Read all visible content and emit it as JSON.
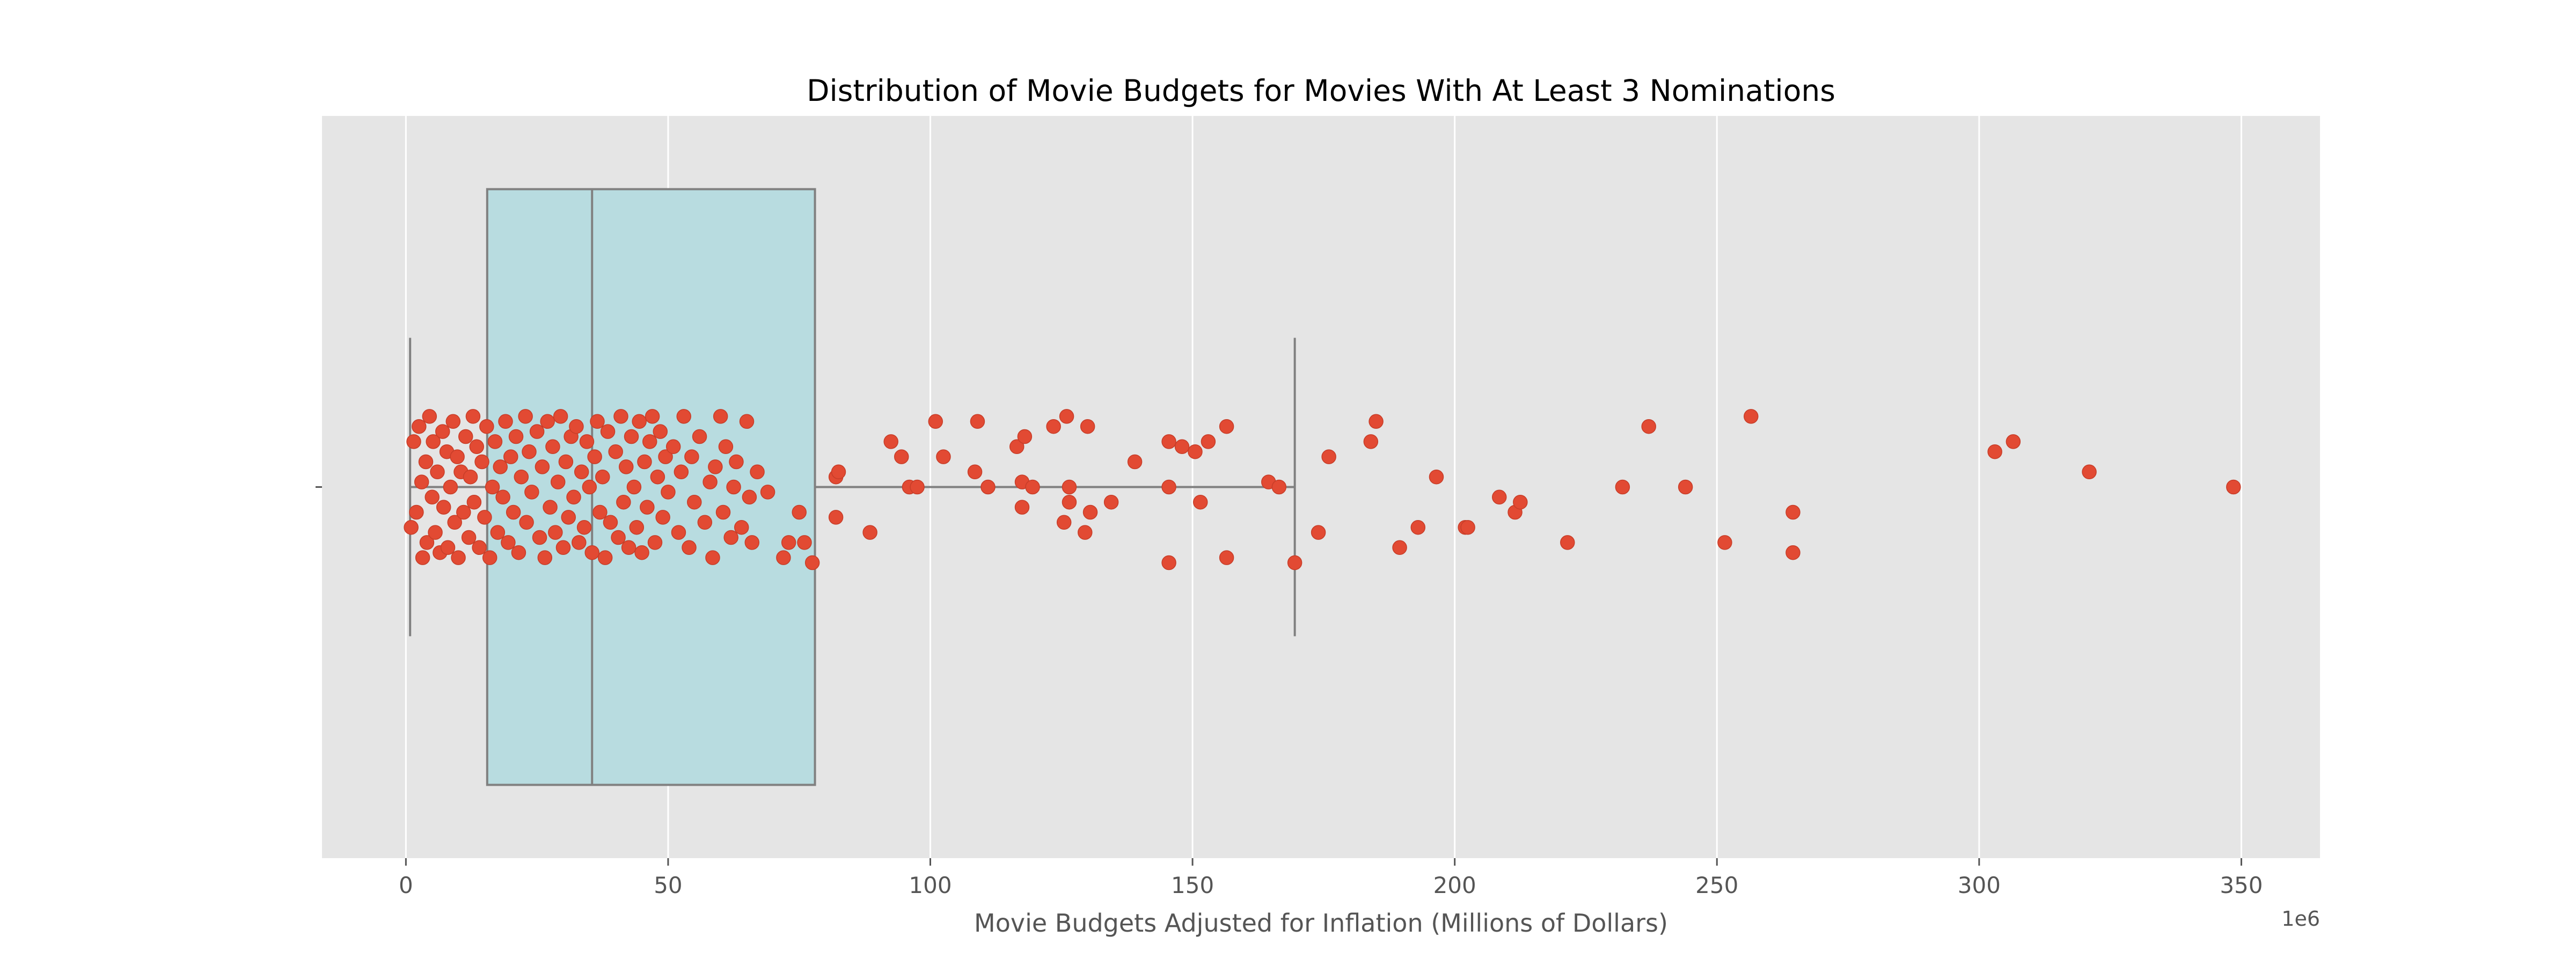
{
  "chart_data": {
    "type": "box",
    "title": "Distribution of Movie Budgets for Movies With At Least 3 Nominations",
    "xlabel": "Movie Budgets Adjusted for Inflation (Millions of Dollars)",
    "ylabel": "",
    "x_offset_label": "1e6",
    "xlim": [
      -16,
      365
    ],
    "xticks": [
      0,
      50,
      100,
      150,
      200,
      250,
      300,
      350
    ],
    "xtick_labels": [
      "0",
      "50",
      "100",
      "150",
      "200",
      "250",
      "300",
      "350"
    ],
    "grid": true,
    "legend": "none",
    "colors": {
      "plot_background": "#e5e5e5",
      "grid": "#ffffff",
      "box_fill": "#b8dce0",
      "box_edge": "#808080",
      "point": "#e24a33",
      "point_edge": "#c73d28"
    },
    "box": {
      "whisker_low": 0.8,
      "q1": 15.5,
      "median": 35.5,
      "q3": 78,
      "whisker_high": 169.5
    },
    "points": [
      {
        "x": 1.0,
        "j": -0.08
      },
      {
        "x": 1.5,
        "j": 0.09
      },
      {
        "x": 2.0,
        "j": -0.05
      },
      {
        "x": 2.5,
        "j": 0.12
      },
      {
        "x": 3.0,
        "j": 0.01
      },
      {
        "x": 3.2,
        "j": -0.14
      },
      {
        "x": 3.8,
        "j": 0.05
      },
      {
        "x": 4.0,
        "j": -0.11
      },
      {
        "x": 4.5,
        "j": 0.14
      },
      {
        "x": 5.0,
        "j": -0.02
      },
      {
        "x": 5.2,
        "j": 0.09
      },
      {
        "x": 5.6,
        "j": -0.09
      },
      {
        "x": 6.0,
        "j": 0.03
      },
      {
        "x": 6.5,
        "j": -0.13
      },
      {
        "x": 7.0,
        "j": 0.11
      },
      {
        "x": 7.2,
        "j": -0.04
      },
      {
        "x": 7.8,
        "j": 0.07
      },
      {
        "x": 8.0,
        "j": -0.12
      },
      {
        "x": 8.5,
        "j": 0.0
      },
      {
        "x": 9.0,
        "j": 0.13
      },
      {
        "x": 9.3,
        "j": -0.07
      },
      {
        "x": 9.8,
        "j": 0.06
      },
      {
        "x": 10.0,
        "j": -0.14
      },
      {
        "x": 10.5,
        "j": 0.03
      },
      {
        "x": 11.0,
        "j": -0.05
      },
      {
        "x": 11.4,
        "j": 0.1
      },
      {
        "x": 12.0,
        "j": -0.1
      },
      {
        "x": 12.3,
        "j": 0.02
      },
      {
        "x": 12.8,
        "j": 0.14
      },
      {
        "x": 13.0,
        "j": -0.03
      },
      {
        "x": 13.5,
        "j": 0.08
      },
      {
        "x": 14.0,
        "j": -0.12
      },
      {
        "x": 14.5,
        "j": 0.05
      },
      {
        "x": 15.0,
        "j": -0.06
      },
      {
        "x": 15.4,
        "j": 0.12
      },
      {
        "x": 16.0,
        "j": -0.14
      },
      {
        "x": 16.5,
        "j": 0.0
      },
      {
        "x": 17.0,
        "j": 0.09
      },
      {
        "x": 17.5,
        "j": -0.09
      },
      {
        "x": 18.0,
        "j": 0.04
      },
      {
        "x": 18.5,
        "j": -0.02
      },
      {
        "x": 19.0,
        "j": 0.13
      },
      {
        "x": 19.5,
        "j": -0.11
      },
      {
        "x": 20.0,
        "j": 0.06
      },
      {
        "x": 20.5,
        "j": -0.05
      },
      {
        "x": 21.0,
        "j": 0.1
      },
      {
        "x": 21.5,
        "j": -0.13
      },
      {
        "x": 22.0,
        "j": 0.02
      },
      {
        "x": 22.8,
        "j": 0.14
      },
      {
        "x": 23.0,
        "j": -0.07
      },
      {
        "x": 23.5,
        "j": 0.07
      },
      {
        "x": 24.0,
        "j": -0.01
      },
      {
        "x": 25.0,
        "j": 0.11
      },
      {
        "x": 25.5,
        "j": -0.1
      },
      {
        "x": 26.0,
        "j": 0.04
      },
      {
        "x": 26.5,
        "j": -0.14
      },
      {
        "x": 27.0,
        "j": 0.13
      },
      {
        "x": 27.5,
        "j": -0.04
      },
      {
        "x": 28.0,
        "j": 0.08
      },
      {
        "x": 28.5,
        "j": -0.09
      },
      {
        "x": 29.0,
        "j": 0.01
      },
      {
        "x": 29.5,
        "j": 0.14
      },
      {
        "x": 30.0,
        "j": -0.12
      },
      {
        "x": 30.5,
        "j": 0.05
      },
      {
        "x": 31.0,
        "j": -0.06
      },
      {
        "x": 31.5,
        "j": 0.1
      },
      {
        "x": 32.0,
        "j": -0.02
      },
      {
        "x": 32.5,
        "j": 0.12
      },
      {
        "x": 33.0,
        "j": -0.11
      },
      {
        "x": 33.5,
        "j": 0.03
      },
      {
        "x": 34.0,
        "j": -0.08
      },
      {
        "x": 34.5,
        "j": 0.09
      },
      {
        "x": 35.0,
        "j": 0.0
      },
      {
        "x": 35.5,
        "j": -0.13
      },
      {
        "x": 36.0,
        "j": 0.06
      },
      {
        "x": 36.5,
        "j": 0.13
      },
      {
        "x": 37.0,
        "j": -0.05
      },
      {
        "x": 37.5,
        "j": 0.02
      },
      {
        "x": 38.0,
        "j": -0.14
      },
      {
        "x": 38.5,
        "j": 0.11
      },
      {
        "x": 39.0,
        "j": -0.07
      },
      {
        "x": 40.0,
        "j": 0.07
      },
      {
        "x": 40.5,
        "j": -0.1
      },
      {
        "x": 41.0,
        "j": 0.14
      },
      {
        "x": 41.5,
        "j": -0.03
      },
      {
        "x": 42.0,
        "j": 0.04
      },
      {
        "x": 42.5,
        "j": -0.12
      },
      {
        "x": 43.0,
        "j": 0.1
      },
      {
        "x": 43.5,
        "j": 0.0
      },
      {
        "x": 44.0,
        "j": -0.08
      },
      {
        "x": 44.5,
        "j": 0.13
      },
      {
        "x": 45.0,
        "j": -0.13
      },
      {
        "x": 45.5,
        "j": 0.05
      },
      {
        "x": 46.0,
        "j": -0.04
      },
      {
        "x": 46.5,
        "j": 0.09
      },
      {
        "x": 47.0,
        "j": 0.14
      },
      {
        "x": 47.5,
        "j": -0.11
      },
      {
        "x": 48.0,
        "j": 0.02
      },
      {
        "x": 48.5,
        "j": 0.11
      },
      {
        "x": 49.0,
        "j": -0.06
      },
      {
        "x": 49.5,
        "j": 0.06
      },
      {
        "x": 50.0,
        "j": -0.01
      },
      {
        "x": 51.0,
        "j": 0.08
      },
      {
        "x": 52.0,
        "j": -0.09
      },
      {
        "x": 52.5,
        "j": 0.03
      },
      {
        "x": 53.0,
        "j": 0.14
      },
      {
        "x": 54.0,
        "j": -0.12
      },
      {
        "x": 54.5,
        "j": 0.06
      },
      {
        "x": 55.0,
        "j": -0.03
      },
      {
        "x": 56.0,
        "j": 0.1
      },
      {
        "x": 57.0,
        "j": -0.07
      },
      {
        "x": 58.0,
        "j": 0.01
      },
      {
        "x": 58.5,
        "j": -0.14
      },
      {
        "x": 59.0,
        "j": 0.04
      },
      {
        "x": 60.0,
        "j": 0.14
      },
      {
        "x": 60.5,
        "j": -0.05
      },
      {
        "x": 61.0,
        "j": 0.08
      },
      {
        "x": 62.0,
        "j": -0.1
      },
      {
        "x": 62.5,
        "j": 0.0
      },
      {
        "x": 63.0,
        "j": 0.05
      },
      {
        "x": 64.0,
        "j": -0.08
      },
      {
        "x": 65.0,
        "j": 0.13
      },
      {
        "x": 65.5,
        "j": -0.02
      },
      {
        "x": 66.0,
        "j": -0.11
      },
      {
        "x": 67.0,
        "j": 0.03
      },
      {
        "x": 69.0,
        "j": -0.01
      },
      {
        "x": 72.0,
        "j": -0.14
      },
      {
        "x": 73.0,
        "j": -0.11
      },
      {
        "x": 75.0,
        "j": -0.05
      },
      {
        "x": 76.0,
        "j": -0.11
      },
      {
        "x": 77.5,
        "j": -0.15
      },
      {
        "x": 82.0,
        "j": -0.06
      },
      {
        "x": 82.0,
        "j": 0.02
      },
      {
        "x": 82.5,
        "j": 0.03
      },
      {
        "x": 88.5,
        "j": -0.09
      },
      {
        "x": 92.5,
        "j": 0.09
      },
      {
        "x": 94.5,
        "j": 0.06
      },
      {
        "x": 96.0,
        "j": 0.0
      },
      {
        "x": 97.5,
        "j": 0.0
      },
      {
        "x": 101.0,
        "j": 0.13
      },
      {
        "x": 102.5,
        "j": 0.06
      },
      {
        "x": 108.5,
        "j": 0.03
      },
      {
        "x": 109.0,
        "j": 0.13
      },
      {
        "x": 111.0,
        "j": 0.0
      },
      {
        "x": 116.5,
        "j": 0.08
      },
      {
        "x": 117.5,
        "j": -0.04
      },
      {
        "x": 117.5,
        "j": 0.01
      },
      {
        "x": 118.0,
        "j": 0.1
      },
      {
        "x": 119.5,
        "j": 0.0
      },
      {
        "x": 123.5,
        "j": 0.12
      },
      {
        "x": 125.5,
        "j": -0.07
      },
      {
        "x": 126.0,
        "j": 0.14
      },
      {
        "x": 126.5,
        "j": -0.03
      },
      {
        "x": 126.5,
        "j": 0.0
      },
      {
        "x": 129.5,
        "j": -0.09
      },
      {
        "x": 130.0,
        "j": 0.12
      },
      {
        "x": 130.5,
        "j": -0.05
      },
      {
        "x": 134.5,
        "j": -0.03
      },
      {
        "x": 139.0,
        "j": 0.05
      },
      {
        "x": 145.5,
        "j": 0.09
      },
      {
        "x": 145.5,
        "j": 0.0
      },
      {
        "x": 145.5,
        "j": -0.15
      },
      {
        "x": 148.0,
        "j": 0.08
      },
      {
        "x": 150.5,
        "j": 0.07
      },
      {
        "x": 151.5,
        "j": -0.03
      },
      {
        "x": 153.0,
        "j": 0.09
      },
      {
        "x": 156.5,
        "j": 0.12
      },
      {
        "x": 156.5,
        "j": -0.14
      },
      {
        "x": 164.5,
        "j": 0.01
      },
      {
        "x": 166.5,
        "j": 0.0
      },
      {
        "x": 169.5,
        "j": -0.15
      },
      {
        "x": 174.0,
        "j": -0.09
      },
      {
        "x": 176.0,
        "j": 0.06
      },
      {
        "x": 184.0,
        "j": 0.09
      },
      {
        "x": 185.0,
        "j": 0.13
      },
      {
        "x": 189.5,
        "j": -0.12
      },
      {
        "x": 193.0,
        "j": -0.08
      },
      {
        "x": 196.5,
        "j": 0.02
      },
      {
        "x": 202.0,
        "j": -0.08
      },
      {
        "x": 202.5,
        "j": -0.08
      },
      {
        "x": 208.5,
        "j": -0.02
      },
      {
        "x": 211.5,
        "j": -0.05
      },
      {
        "x": 212.5,
        "j": -0.03
      },
      {
        "x": 221.5,
        "j": -0.11
      },
      {
        "x": 232.0,
        "j": 0.0
      },
      {
        "x": 237.0,
        "j": 0.12
      },
      {
        "x": 244.0,
        "j": 0.0
      },
      {
        "x": 251.5,
        "j": -0.11
      },
      {
        "x": 256.5,
        "j": 0.14
      },
      {
        "x": 264.5,
        "j": -0.05
      },
      {
        "x": 264.5,
        "j": -0.13
      },
      {
        "x": 303.0,
        "j": 0.07
      },
      {
        "x": 306.5,
        "j": 0.09
      },
      {
        "x": 321.0,
        "j": 0.03
      },
      {
        "x": 348.5,
        "j": 0.0
      }
    ]
  }
}
